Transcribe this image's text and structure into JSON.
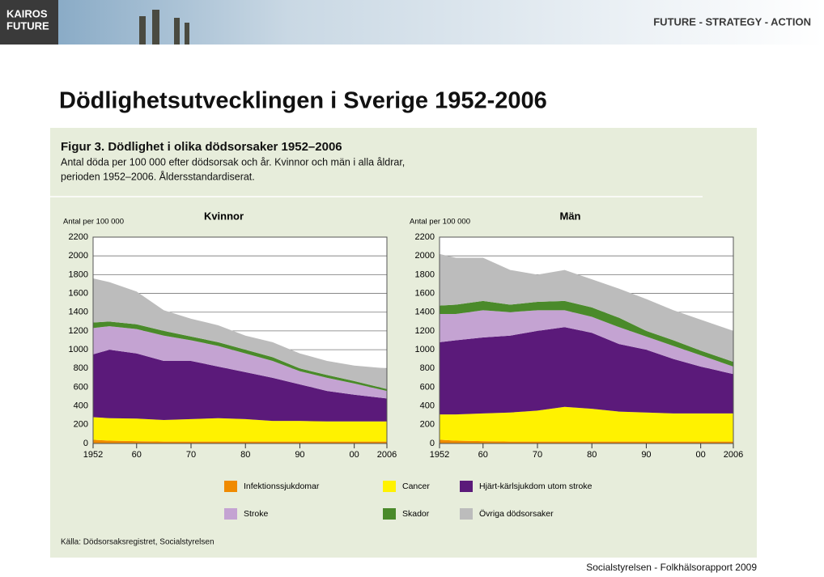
{
  "header": {
    "logo": [
      "KAIROS",
      "FUTURE"
    ],
    "tagline": "FUTURE - STRATEGY - ACTION"
  },
  "slide_title": "Dödlighetsutvecklingen i Sverige 1952-2006",
  "figure": {
    "title": "Figur 3. Dödlighet i olika dödsorsaker 1952–2006",
    "subtitle": [
      "Antal döda per 100 000 efter dödsorsak och år. Kvinnor och män i alla åldrar,",
      "perioden 1952–2006. Åldersstandardiserat."
    ],
    "legend": [
      {
        "name": "Infektionssjukdomar",
        "color": "#f08a00"
      },
      {
        "name": "Cancer",
        "color": "#fff200"
      },
      {
        "name": "Hjärt-kärlsjukdom utom stroke",
        "color": "#5b1a7a"
      },
      {
        "name": "Stroke",
        "color": "#c4a3d2"
      },
      {
        "name": "Skador",
        "color": "#4a8a2a"
      },
      {
        "name": "Övriga dödsorsaker",
        "color": "#bcbcbc"
      }
    ],
    "source": "Källa: Dödsorsaksregistret, Socialstyrelsen"
  },
  "chart_data": [
    {
      "type": "area",
      "stacked": true,
      "title": "Kvinnor",
      "y_label": "Antal per 100 000",
      "x": [
        1952,
        1955,
        1960,
        1965,
        1970,
        1975,
        1980,
        1985,
        1990,
        1995,
        2000,
        2006
      ],
      "series": [
        {
          "values": [
            40,
            30,
            25,
            20,
            20,
            20,
            20,
            20,
            20,
            20,
            20,
            20
          ]
        },
        {
          "values": [
            240,
            240,
            240,
            230,
            240,
            250,
            240,
            220,
            220,
            215,
            215,
            215
          ]
        },
        {
          "values": [
            670,
            730,
            695,
            630,
            620,
            550,
            500,
            460,
            390,
            325,
            285,
            245
          ]
        },
        {
          "values": [
            280,
            250,
            260,
            270,
            220,
            220,
            200,
            180,
            140,
            140,
            120,
            80
          ]
        },
        {
          "values": [
            60,
            50,
            50,
            50,
            40,
            40,
            40,
            40,
            30,
            30,
            25,
            20
          ]
        },
        {
          "values": [
            470,
            420,
            350,
            220,
            190,
            180,
            150,
            160,
            160,
            150,
            165,
            220
          ]
        }
      ],
      "xlim": [
        1952,
        2006
      ],
      "xticks": [
        1952,
        {
          "value": 1960,
          "label": "60"
        },
        {
          "value": 1970,
          "label": "70"
        },
        {
          "value": 1980,
          "label": "80"
        },
        {
          "value": 1990,
          "label": "90"
        },
        {
          "value": 2000,
          "label": "00"
        },
        2006
      ],
      "ylim": [
        0,
        2200
      ],
      "yticks": [
        0,
        200,
        400,
        600,
        800,
        1000,
        1200,
        1400,
        1600,
        1800,
        2000,
        2200
      ],
      "grid": true
    },
    {
      "type": "area",
      "stacked": true,
      "title": "Män",
      "y_label": "Antal per 100 000",
      "x": [
        1952,
        1955,
        1960,
        1965,
        1970,
        1975,
        1980,
        1985,
        1990,
        1995,
        2000,
        2006
      ],
      "series": [
        {
          "values": [
            40,
            30,
            25,
            20,
            20,
            20,
            20,
            20,
            20,
            20,
            20,
            20
          ]
        },
        {
          "values": [
            270,
            280,
            295,
            310,
            330,
            370,
            350,
            320,
            310,
            300,
            300,
            300
          ]
        },
        {
          "values": [
            770,
            790,
            810,
            820,
            850,
            850,
            810,
            720,
            670,
            580,
            500,
            420
          ]
        },
        {
          "values": [
            300,
            280,
            290,
            250,
            220,
            180,
            170,
            180,
            140,
            140,
            120,
            80
          ]
        },
        {
          "values": [
            90,
            100,
            100,
            80,
            90,
            100,
            100,
            100,
            60,
            60,
            50,
            50
          ]
        },
        {
          "values": [
            550,
            500,
            460,
            370,
            290,
            330,
            300,
            310,
            340,
            320,
            330,
            330
          ]
        }
      ],
      "xlim": [
        1952,
        2006
      ],
      "xticks": [
        1952,
        {
          "value": 1960,
          "label": "60"
        },
        {
          "value": 1970,
          "label": "70"
        },
        {
          "value": 1980,
          "label": "80"
        },
        {
          "value": 1990,
          "label": "90"
        },
        {
          "value": 2000,
          "label": "00"
        },
        2006
      ],
      "ylim": [
        0,
        2200
      ],
      "yticks": [
        0,
        200,
        400,
        600,
        800,
        1000,
        1200,
        1400,
        1600,
        1800,
        2000,
        2200
      ],
      "grid": true
    }
  ],
  "footer": "Socialstyrelsen - Folkhälsorapport 2009"
}
